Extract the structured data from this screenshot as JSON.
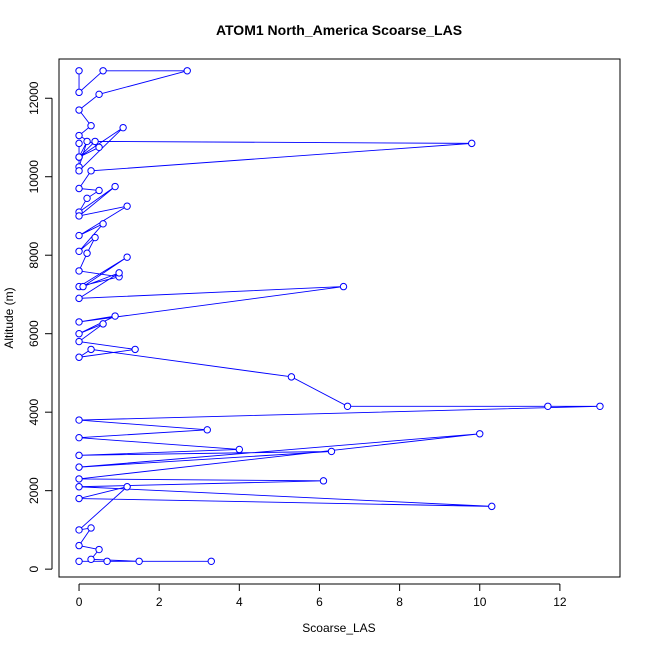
{
  "chart_data": {
    "type": "line",
    "title": "ATOM1 North_America Scoarse_LAS",
    "xlabel": "Scoarse_LAS",
    "ylabel": "Altitude (m)",
    "xlim": [
      -0.5,
      13.5
    ],
    "ylim": [
      -200,
      13000
    ],
    "xticks": [
      0,
      2,
      4,
      6,
      8,
      10,
      12
    ],
    "yticks": [
      0,
      2000,
      4000,
      6000,
      8000,
      10000,
      12000
    ],
    "grid": false,
    "legend": "none",
    "series_color": "#0000ff",
    "marker": "open-circle",
    "series": [
      {
        "x": [
          0.0,
          0.0,
          0.6,
          2.7,
          0.5,
          0.0,
          0.3,
          0.0,
          0.5,
          0.0,
          0.2,
          0.0,
          0.0,
          0.0,
          1.1,
          0.0,
          0.4,
          9.8,
          0.3,
          0.0,
          0.5,
          0.2,
          0.0,
          0.9,
          0.0,
          1.2,
          0.0,
          0.6,
          0.0,
          0.4,
          0.2,
          0.0,
          1.0,
          0.0,
          1.2,
          0.1,
          1.0,
          0.0,
          6.6,
          0.0,
          0.9,
          0.0,
          0.6,
          0.0,
          1.4,
          0.0,
          0.3,
          5.3,
          6.7,
          11.7,
          13.0,
          0.0,
          3.2,
          0.0,
          4.0,
          0.0,
          6.3,
          0.0,
          10.0,
          0.0,
          6.1,
          0.0,
          10.3,
          0.0,
          1.2,
          0.0,
          0.3,
          0.0,
          0.5,
          0.3,
          1.5,
          0.0,
          3.3,
          0.7
        ],
        "y": [
          12700,
          12150,
          12700,
          12700,
          12100,
          11700,
          11300,
          11050,
          10750,
          10500,
          10900,
          10250,
          10850,
          10150,
          11250,
          10500,
          10900,
          10850,
          10150,
          9700,
          9650,
          9450,
          9100,
          9750,
          9000,
          9250,
          8500,
          8800,
          8100,
          8450,
          8050,
          7600,
          7450,
          7200,
          7950,
          7200,
          7550,
          6900,
          7200,
          6300,
          6450,
          6000,
          6250,
          5800,
          5600,
          5400,
          5600,
          4900,
          4150,
          4150,
          4150,
          3800,
          3550,
          3350,
          3050,
          2900,
          3000,
          2600,
          3450,
          2300,
          2250,
          2100,
          1600,
          1800,
          2100,
          1000,
          1050,
          600,
          500,
          250,
          200,
          200,
          200,
          200
        ]
      }
    ]
  }
}
